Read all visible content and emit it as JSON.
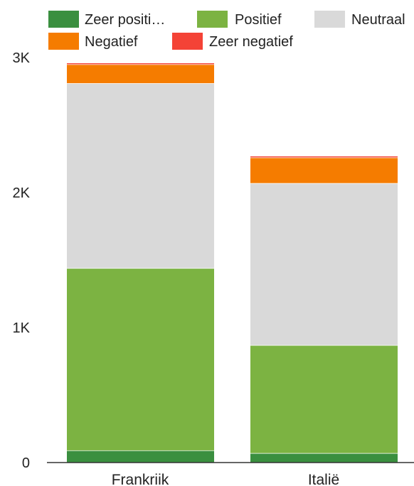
{
  "chart_data": {
    "type": "bar",
    "stacked": true,
    "categories": [
      "Frankriik",
      "Italië"
    ],
    "series": [
      {
        "name": "Zeer positi…",
        "color": "#3a8f3f",
        "values": [
          90,
          70
        ]
      },
      {
        "name": "Positief",
        "color": "#7cb342",
        "values": [
          1350,
          800
        ]
      },
      {
        "name": "Neutraal",
        "color": "#d9d9d9",
        "values": [
          1370,
          1200
        ]
      },
      {
        "name": "Negatief",
        "color": "#f57c00",
        "values": [
          140,
          190
        ]
      },
      {
        "name": "Zeer negatief",
        "color": "#f44336",
        "values": [
          8,
          8
        ]
      }
    ],
    "y_ticks": [
      {
        "value": 0,
        "label": "0"
      },
      {
        "value": 1000,
        "label": "1K"
      },
      {
        "value": 2000,
        "label": "2K"
      },
      {
        "value": 3000,
        "label": "3K"
      }
    ],
    "ylim": [
      0,
      3000
    ],
    "grid": false,
    "legend_position": "top"
  }
}
